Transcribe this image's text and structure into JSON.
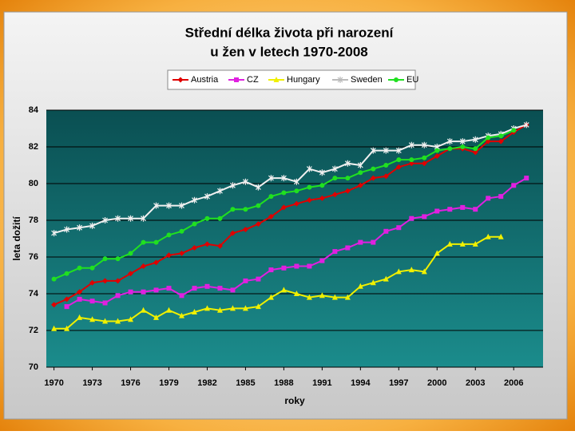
{
  "chart_data": {
    "type": "line",
    "title": [
      "Střední délka života při narození",
      "u žen v letech 1970-2008"
    ],
    "x_label": "roky",
    "y_label": "leta dožití",
    "x": [
      1970,
      1971,
      1972,
      1973,
      1974,
      1975,
      1976,
      1977,
      1978,
      1979,
      1980,
      1981,
      1982,
      1983,
      1984,
      1985,
      1986,
      1987,
      1988,
      1989,
      1990,
      1991,
      1992,
      1993,
      1994,
      1995,
      1996,
      1997,
      1998,
      1999,
      2000,
      2001,
      2002,
      2003,
      2004,
      2005,
      2006,
      2007
    ],
    "xlim": [
      1969.4,
      2008.3
    ],
    "xticks": [
      1970,
      1973,
      1976,
      1979,
      1982,
      1985,
      1988,
      1991,
      1994,
      1997,
      2000,
      2003,
      2006
    ],
    "ylim": [
      70,
      84
    ],
    "yticks": [
      70,
      72,
      74,
      76,
      78,
      80,
      82,
      84
    ],
    "grid": true,
    "legend": "top",
    "series": [
      {
        "name": "Austria",
        "color": "#e00000",
        "marker": "diamond",
        "values": [
          73.4,
          73.7,
          74.1,
          74.6,
          74.7,
          74.7,
          75.1,
          75.5,
          75.7,
          76.1,
          76.2,
          76.5,
          76.7,
          76.6,
          77.3,
          77.5,
          77.8,
          78.2,
          78.7,
          78.9,
          79.1,
          79.2,
          79.4,
          79.6,
          79.9,
          80.3,
          80.4,
          80.9,
          81.1,
          81.1,
          81.5,
          81.9,
          81.9,
          81.7,
          82.3,
          82.3,
          82.8,
          83.2
        ]
      },
      {
        "name": "CZ",
        "color": "#e020e0",
        "marker": "square",
        "values": [
          null,
          73.3,
          73.7,
          73.6,
          73.5,
          73.9,
          74.1,
          74.1,
          74.2,
          74.3,
          73.9,
          74.3,
          74.4,
          74.3,
          74.2,
          74.7,
          74.8,
          75.3,
          75.4,
          75.5,
          75.5,
          75.8,
          76.3,
          76.5,
          76.8,
          76.8,
          77.4,
          77.6,
          78.1,
          78.2,
          78.5,
          78.6,
          78.7,
          78.6,
          79.2,
          79.3,
          79.9,
          80.3
        ]
      },
      {
        "name": "Hungary",
        "color": "#f0f000",
        "marker": "triangle",
        "values": [
          72.1,
          72.1,
          72.7,
          72.6,
          72.5,
          72.5,
          72.6,
          73.1,
          72.7,
          73.1,
          72.8,
          73.0,
          73.2,
          73.1,
          73.2,
          73.2,
          73.3,
          73.8,
          74.2,
          74.0,
          73.8,
          73.9,
          73.8,
          73.8,
          74.4,
          74.6,
          74.8,
          75.2,
          75.3,
          75.2,
          76.2,
          76.7,
          76.7,
          76.7,
          77.1,
          77.1,
          null,
          null
        ]
      },
      {
        "name": "Sweden",
        "color": "#f0f0f0",
        "marker": "star",
        "values": [
          77.3,
          77.5,
          77.6,
          77.7,
          78.0,
          78.1,
          78.1,
          78.1,
          78.8,
          78.8,
          78.8,
          79.1,
          79.3,
          79.6,
          79.9,
          80.1,
          79.8,
          80.3,
          80.3,
          80.1,
          80.8,
          80.6,
          80.8,
          81.1,
          81.0,
          81.8,
          81.8,
          81.8,
          82.1,
          82.1,
          82.0,
          82.3,
          82.3,
          82.4,
          82.6,
          82.7,
          83.0,
          83.2
        ]
      },
      {
        "name": "EU",
        "color": "#20e020",
        "marker": "circle",
        "values": [
          74.8,
          75.1,
          75.4,
          75.4,
          75.9,
          75.9,
          76.2,
          76.8,
          76.8,
          77.2,
          77.4,
          77.8,
          78.1,
          78.1,
          78.6,
          78.6,
          78.8,
          79.3,
          79.5,
          79.6,
          79.8,
          79.9,
          80.3,
          80.3,
          80.6,
          80.8,
          81.0,
          81.3,
          81.3,
          81.4,
          81.8,
          81.9,
          82.0,
          81.9,
          82.5,
          82.6,
          82.9,
          null
        ]
      }
    ]
  }
}
